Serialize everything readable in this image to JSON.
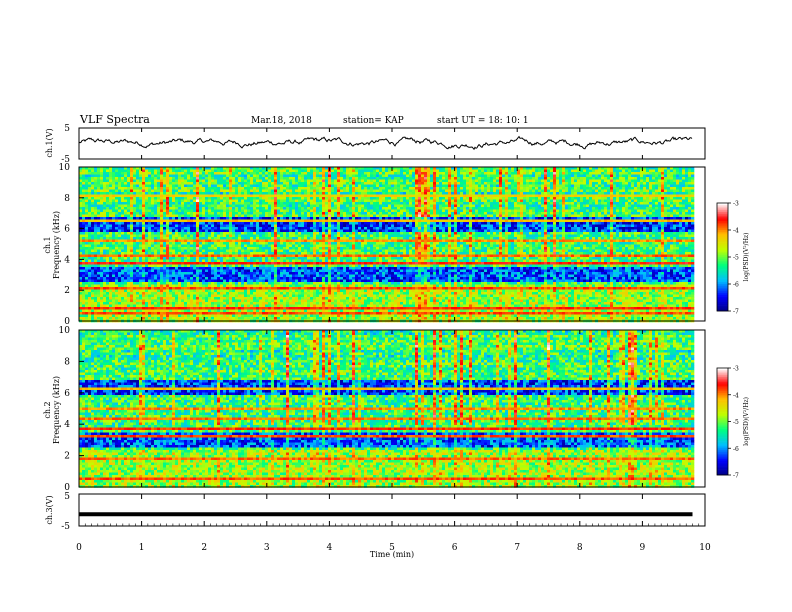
{
  "header": {
    "title": "VLF Spectra",
    "date": "Mar.18, 2018",
    "station": "station= KAP",
    "start": "start  UT =   18: 10: 1"
  },
  "chart_data": [
    {
      "type": "line",
      "panel": "ch1-waveform",
      "ylabel": "ch.1(V)",
      "ylim": [
        -5,
        5
      ],
      "yticks": [
        "5",
        "-5"
      ],
      "xlim": [
        0,
        10
      ],
      "series": [
        {
          "shape": "noisy",
          "mean": 0.3,
          "amplitude": 1.5
        }
      ],
      "color": "#000000"
    },
    {
      "type": "heatmap",
      "panel": "ch1-spectrogram",
      "ylabel": "ch.1",
      "ylabel2": "Frequency  (kHz)",
      "ylim": [
        0,
        10
      ],
      "yticks": [
        "0",
        "2",
        "4",
        "6",
        "8",
        "10"
      ],
      "xlim": [
        0,
        9.8
      ],
      "colorbar": {
        "label": "log(PSD)(V²/Hz)",
        "range": [
          -7,
          -3
        ],
        "ticks": [
          "-3",
          "-4",
          "-5",
          "-6",
          "-7"
        ],
        "colors": [
          "#00007f",
          "#0000ff",
          "#00bfff",
          "#00ff7f",
          "#bfff00",
          "#ffbf00",
          "#ff0000",
          "#ffffff"
        ]
      },
      "bands": [
        {
          "f": 0.5,
          "level": -3.8
        },
        {
          "f": 0.9,
          "level": -3.7
        },
        {
          "f": 2.1,
          "level": -3.8
        },
        {
          "f": 3.8,
          "level": -3.6
        },
        {
          "f": 4.2,
          "level": -3.9
        },
        {
          "f": 5.0,
          "level": -3.8
        },
        {
          "f": 5.3,
          "level": -4.0
        },
        {
          "f": 6.5,
          "level": -4.2
        },
        {
          "f": 8.2,
          "level": -4.3
        }
      ]
    },
    {
      "type": "heatmap",
      "panel": "ch2-spectrogram",
      "ylabel": "ch.2",
      "ylabel2": "Frequency  (kHz)",
      "ylim": [
        0,
        10
      ],
      "yticks": [
        "0",
        "2",
        "4",
        "6",
        "8",
        "10"
      ],
      "xlim": [
        0,
        9.8
      ],
      "colorbar": {
        "label": "log(PSD)(V²/Hz)",
        "range": [
          -7,
          -3
        ],
        "ticks": [
          "-3",
          "-4",
          "-5",
          "-6",
          "-7"
        ],
        "colors": [
          "#00007f",
          "#0000ff",
          "#00bfff",
          "#00ff7f",
          "#bfff00",
          "#ffbf00",
          "#ff0000",
          "#ffffff"
        ]
      },
      "bands": [
        {
          "f": 0.5,
          "level": -3.8
        },
        {
          "f": 1.9,
          "level": -3.9
        },
        {
          "f": 3.2,
          "level": -3.8
        },
        {
          "f": 3.7,
          "level": -3.7
        },
        {
          "f": 4.3,
          "level": -3.9
        },
        {
          "f": 5.0,
          "level": -4.0
        },
        {
          "f": 6.3,
          "level": -4.2
        }
      ]
    },
    {
      "type": "line",
      "panel": "ch3-waveform",
      "ylabel": "ch.3(V)",
      "ylim": [
        -5,
        5
      ],
      "yticks": [
        "5",
        "-5"
      ],
      "xlim": [
        0,
        10
      ],
      "xlabel": "Time  (min)",
      "xticks": [
        "0",
        "1",
        "2",
        "3",
        "4",
        "5",
        "6",
        "7",
        "8",
        "9",
        "10"
      ],
      "series": [
        {
          "shape": "flat",
          "mean": -1.3,
          "amplitude": 0.1
        }
      ],
      "color": "#000000"
    }
  ]
}
